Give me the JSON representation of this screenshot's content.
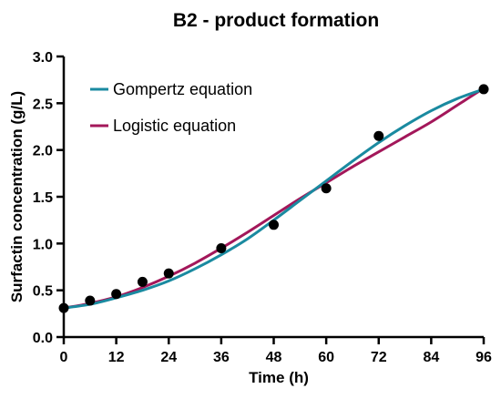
{
  "chart_data": {
    "type": "scatter",
    "title": "B2 - product formation",
    "xlabel": "Time (h)",
    "ylabel": "Surfactin concentration (g/L)",
    "xlim": [
      0,
      96
    ],
    "ylim": [
      0,
      3.0
    ],
    "x_ticks": [
      "0",
      "12",
      "24",
      "36",
      "48",
      "60",
      "72",
      "84",
      "96"
    ],
    "y_ticks": [
      "0.0",
      "0.5",
      "1.0",
      "1.5",
      "2.0",
      "2.5",
      "3.0"
    ],
    "grid": false,
    "legend_position": "top-left",
    "points": {
      "x": [
        0,
        6,
        12,
        18,
        24,
        36,
        48,
        60,
        72,
        96
      ],
      "y": [
        0.31,
        0.39,
        0.46,
        0.59,
        0.68,
        0.95,
        1.2,
        1.59,
        2.15,
        2.65
      ],
      "color": "#000000"
    },
    "series": [
      {
        "name": "Gompertz equation",
        "color": "#1a8aa0",
        "x": [
          0,
          6,
          12,
          18,
          24,
          30,
          36,
          42,
          48,
          54,
          60,
          66,
          72,
          78,
          84,
          90,
          96
        ],
        "y": [
          0.31,
          0.35,
          0.42,
          0.5,
          0.6,
          0.73,
          0.88,
          1.05,
          1.25,
          1.46,
          1.67,
          1.88,
          2.08,
          2.26,
          2.42,
          2.55,
          2.65
        ]
      },
      {
        "name": "Logistic equation",
        "color": "#a3175a",
        "x": [
          0,
          6,
          12,
          18,
          24,
          30,
          36,
          42,
          48,
          54,
          60,
          66,
          72,
          78,
          84,
          90,
          96
        ],
        "y": [
          0.31,
          0.36,
          0.43,
          0.53,
          0.65,
          0.79,
          0.95,
          1.12,
          1.3,
          1.48,
          1.65,
          1.82,
          1.98,
          2.14,
          2.3,
          2.48,
          2.66
        ]
      }
    ]
  }
}
